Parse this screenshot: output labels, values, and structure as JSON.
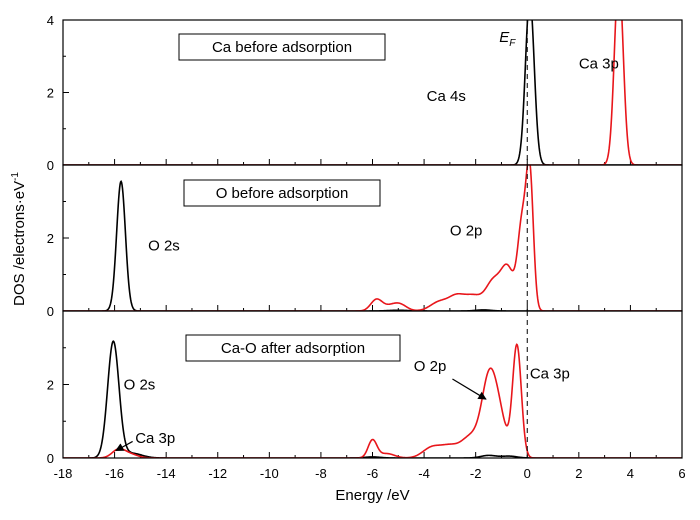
{
  "chart_data": {
    "type": "line",
    "xlabel": "Energy /eV",
    "ylabel": "DOS /electrons·eV",
    "ylabel_sup": "-1",
    "xlim": [
      -18,
      6
    ],
    "xticks": [
      -18,
      -16,
      -14,
      -12,
      -10,
      -8,
      -6,
      -4,
      -2,
      0,
      2,
      4,
      6
    ],
    "fermi_label": "E",
    "fermi_label_sub": "F",
    "fermi_level": 0,
    "panels": [
      {
        "title": "Ca before adsorption",
        "ylim": [
          0,
          4
        ],
        "yticks": [
          0,
          2,
          4
        ],
        "series": [
          {
            "color": "#000000",
            "peaks": [
              {
                "x": 0.1,
                "h": 4.6,
                "w": 0.17
              }
            ]
          },
          {
            "color": "#e8161b",
            "peaks": [
              {
                "x": 3.55,
                "h": 5.2,
                "w": 0.17
              }
            ]
          }
        ],
        "annotations": [
          {
            "text": "Ca 4s",
            "x": -3.9,
            "y": 1.9
          },
          {
            "text": "Ca 3p",
            "x": 2.0,
            "y": 2.8
          }
        ]
      },
      {
        "title": "O before adsorption",
        "ylim": [
          0,
          4
        ],
        "yticks": [
          0,
          2
        ],
        "series": [
          {
            "color": "#000000",
            "peaks": [
              {
                "x": -15.75,
                "h": 3.55,
                "w": 0.17
              },
              {
                "x": -1.7,
                "h": 0.03,
                "w": 0.3
              },
              {
                "x": -5.0,
                "h": 0.02,
                "w": 0.4
              }
            ]
          },
          {
            "color": "#e8161b",
            "peaks": [
              {
                "x": -5.85,
                "h": 0.3,
                "w": 0.22
              },
              {
                "x": -5.2,
                "h": 0.16,
                "w": 0.35
              },
              {
                "x": -4.9,
                "h": 0.09,
                "w": 0.25
              },
              {
                "x": -3.4,
                "h": 0.25,
                "w": 0.35
              },
              {
                "x": -2.75,
                "h": 0.35,
                "w": 0.3
              },
              {
                "x": -2.1,
                "h": 0.4,
                "w": 0.35
              },
              {
                "x": -1.3,
                "h": 0.8,
                "w": 0.3
              },
              {
                "x": -0.75,
                "h": 1.1,
                "w": 0.25
              },
              {
                "x": -0.2,
                "h": 2.3,
                "w": 0.17
              },
              {
                "x": 0.1,
                "h": 3.6,
                "w": 0.14
              }
            ]
          }
        ],
        "annotations": [
          {
            "text": "O 2s",
            "x": -14.7,
            "y": 1.8
          },
          {
            "text": "O 2p",
            "x": -3.0,
            "y": 2.2
          }
        ]
      },
      {
        "title": "Ca-O after adsorption",
        "ylim": [
          0,
          4
        ],
        "yticks": [
          0,
          2
        ],
        "series": [
          {
            "color": "#000000",
            "peaks": [
              {
                "x": -16.05,
                "h": 3.15,
                "w": 0.22
              },
              {
                "x": -15.35,
                "h": 0.13,
                "w": 0.4
              },
              {
                "x": -1.5,
                "h": 0.07,
                "w": 0.3
              },
              {
                "x": -0.7,
                "h": 0.05,
                "w": 0.3
              },
              {
                "x": -6.0,
                "h": 0.03,
                "w": 0.3
              }
            ]
          },
          {
            "color": "#e8161b",
            "peaks": [
              {
                "x": -15.85,
                "h": 0.22,
                "w": 0.25
              },
              {
                "x": -15.4,
                "h": 0.1,
                "w": 0.3
              },
              {
                "x": -6.0,
                "h": 0.48,
                "w": 0.17
              },
              {
                "x": -5.45,
                "h": 0.12,
                "w": 0.3
              },
              {
                "x": -3.7,
                "h": 0.28,
                "w": 0.35
              },
              {
                "x": -3.0,
                "h": 0.3,
                "w": 0.35
              },
              {
                "x": -2.2,
                "h": 0.55,
                "w": 0.35
              },
              {
                "x": -1.45,
                "h": 2.25,
                "w": 0.3
              },
              {
                "x": -1.0,
                "h": 0.65,
                "w": 0.25
              },
              {
                "x": -0.4,
                "h": 3.05,
                "w": 0.17
              }
            ]
          }
        ],
        "annotations": [
          {
            "text": "O 2s",
            "x": -15.65,
            "y": 2.0
          },
          {
            "text": "Ca 3p",
            "x": -15.2,
            "y": 0.55
          },
          {
            "text": "O 2p",
            "x": -4.4,
            "y": 2.5
          },
          {
            "text": "Ca 3p",
            "x": 0.1,
            "y": 2.3
          }
        ],
        "arrows": [
          {
            "from": [
              -15.3,
              0.45
            ],
            "to": [
              -15.95,
              0.2
            ]
          },
          {
            "from": [
              -2.9,
              2.15
            ],
            "to": [
              -1.6,
              1.6
            ]
          }
        ]
      }
    ]
  }
}
